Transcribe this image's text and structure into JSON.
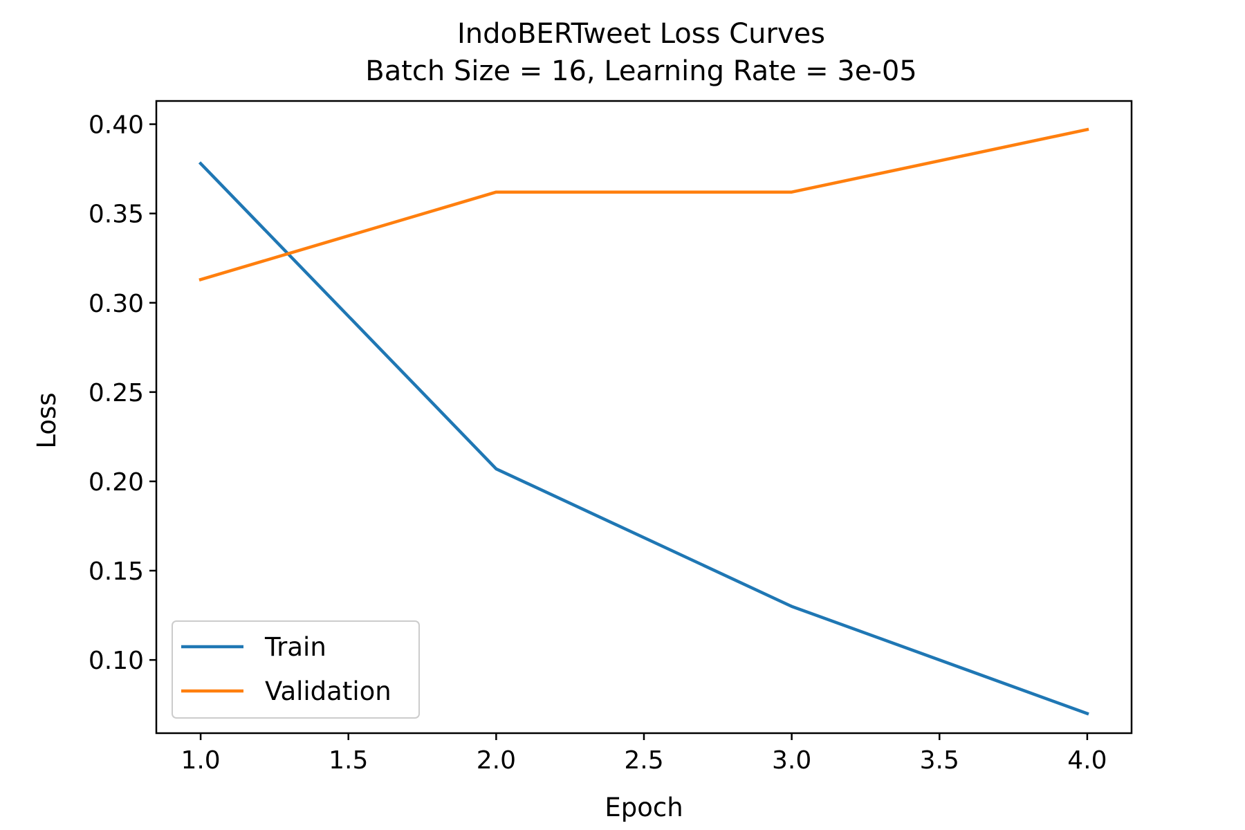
{
  "chart_data": {
    "type": "line",
    "title": "IndoBERTweet Loss Curves",
    "subtitle": "Batch Size = 16, Learning Rate = 3e-05",
    "xlabel": "Epoch",
    "ylabel": "Loss",
    "x": [
      1.0,
      2.0,
      3.0,
      4.0
    ],
    "xlim": [
      0.85,
      4.15
    ],
    "ylim": [
      0.059,
      0.413
    ],
    "xticks": [
      1.0,
      1.5,
      2.0,
      2.5,
      3.0,
      3.5,
      4.0
    ],
    "xtick_labels": [
      "1.0",
      "1.5",
      "2.0",
      "2.5",
      "3.0",
      "3.5",
      "4.0"
    ],
    "yticks": [
      0.1,
      0.15,
      0.2,
      0.25,
      0.3,
      0.35,
      0.4
    ],
    "ytick_labels": [
      "0.10",
      "0.15",
      "0.20",
      "0.25",
      "0.30",
      "0.35",
      "0.40"
    ],
    "grid": false,
    "legend_position": "lower-left",
    "series": [
      {
        "name": "Train",
        "color": "#1f77b4",
        "values": [
          0.378,
          0.207,
          0.13,
          0.07
        ]
      },
      {
        "name": "Validation",
        "color": "#ff7f0e",
        "values": [
          0.313,
          0.362,
          0.362,
          0.397
        ]
      }
    ]
  }
}
